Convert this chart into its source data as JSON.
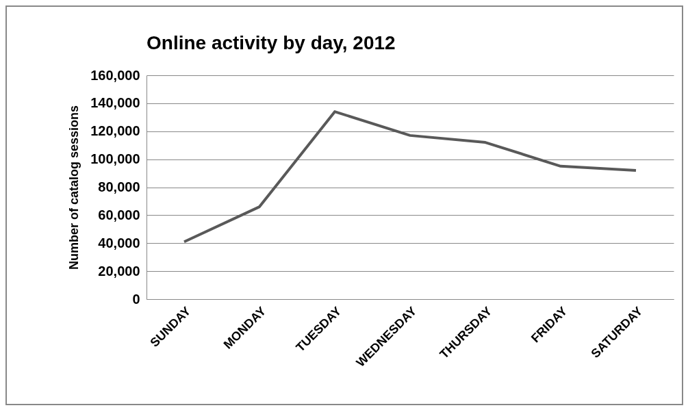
{
  "chart_data": {
    "type": "line",
    "title": "Online activity by day, 2012",
    "ylabel": "Number of catalog sessions",
    "categories": [
      "SUNDAY",
      "MONDAY",
      "TUESDAY",
      "WEDNESDAY",
      "THURSDAY",
      "FRIDAY",
      "SATURDAY"
    ],
    "series": [
      {
        "color": "#595959",
        "values": [
          41000,
          66000,
          134000,
          117000,
          112000,
          95000,
          92000
        ]
      }
    ],
    "ylim": [
      0,
      160000
    ],
    "yticks": [
      0,
      {
        "value": 20000,
        "label": "20,000"
      },
      {
        "value": 40000,
        "label": "40,000"
      },
      {
        "value": 60000,
        "label": "60,000"
      },
      {
        "value": 80000,
        "label": "80,000"
      },
      {
        "value": 100000,
        "label": "100,000"
      },
      {
        "value": 120000,
        "label": "120,000"
      },
      {
        "value": 140000,
        "label": "140,000"
      },
      {
        "value": 160000,
        "label": "160,000"
      }
    ],
    "grid": "y",
    "legend": false,
    "marker": "none",
    "line_style": "solid"
  }
}
